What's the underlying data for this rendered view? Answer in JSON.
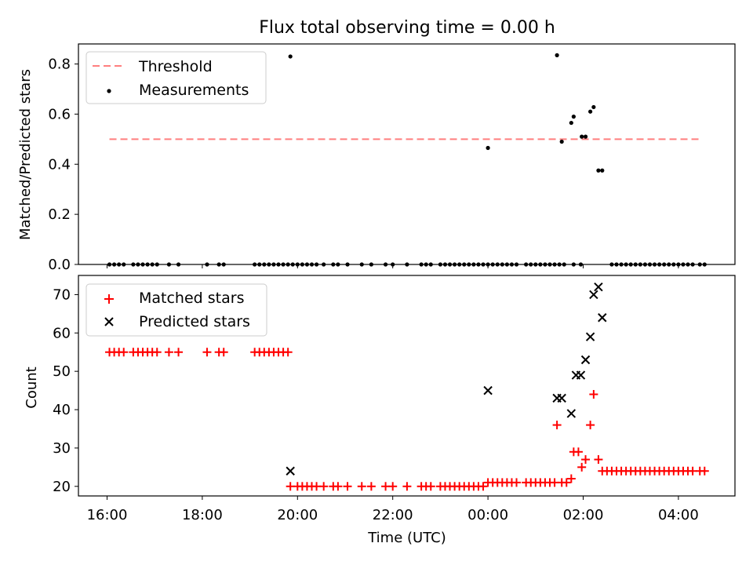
{
  "title": "Flux total observing time = 0.00 h",
  "xlabel": "Time (UTC)",
  "xticks": [
    {
      "h": 0,
      "label": "16:00"
    },
    {
      "h": 2,
      "label": "18:00"
    },
    {
      "h": 4,
      "label": "20:00"
    },
    {
      "h": 6,
      "label": "22:00"
    },
    {
      "h": 8,
      "label": "00:00"
    },
    {
      "h": 10,
      "label": "02:00"
    },
    {
      "h": 12,
      "label": "04:00"
    }
  ],
  "chart_data": [
    {
      "type": "scatter",
      "ylabel": "Matched/Predicted stars",
      "ylim": [
        0.0,
        0.88
      ],
      "yticks": [
        "0.0",
        "0.2",
        "0.4",
        "0.6",
        "0.8"
      ],
      "legend_position": "top-left",
      "threshold": {
        "name": "Threshold",
        "value": 0.5,
        "x_range": [
          0.05,
          12.5
        ],
        "color": "#ff7f7f"
      },
      "series": [
        {
          "name": "Measurements",
          "color": "#000000",
          "points": [
            [
              0.05,
              0
            ],
            [
              0.15,
              0
            ],
            [
              0.25,
              0
            ],
            [
              0.35,
              0
            ],
            [
              0.55,
              0
            ],
            [
              0.65,
              0
            ],
            [
              0.75,
              0
            ],
            [
              0.85,
              0
            ],
            [
              0.95,
              0
            ],
            [
              1.05,
              0
            ],
            [
              1.3,
              0
            ],
            [
              1.5,
              0
            ],
            [
              2.1,
              0
            ],
            [
              2.35,
              0
            ],
            [
              2.45,
              0
            ],
            [
              3.1,
              0
            ],
            [
              3.2,
              0
            ],
            [
              3.3,
              0
            ],
            [
              3.4,
              0
            ],
            [
              3.5,
              0
            ],
            [
              3.6,
              0
            ],
            [
              3.7,
              0
            ],
            [
              3.8,
              0
            ],
            [
              3.9,
              0
            ],
            [
              3.85,
              0.83
            ],
            [
              4.0,
              0
            ],
            [
              4.1,
              0
            ],
            [
              4.2,
              0
            ],
            [
              4.3,
              0
            ],
            [
              4.4,
              0
            ],
            [
              4.55,
              0
            ],
            [
              4.75,
              0
            ],
            [
              4.85,
              0
            ],
            [
              5.05,
              0
            ],
            [
              5.35,
              0
            ],
            [
              5.55,
              0
            ],
            [
              5.85,
              0
            ],
            [
              6.0,
              0
            ],
            [
              6.3,
              0
            ],
            [
              6.6,
              0
            ],
            [
              6.7,
              0
            ],
            [
              6.8,
              0
            ],
            [
              7.0,
              0
            ],
            [
              7.1,
              0
            ],
            [
              7.2,
              0
            ],
            [
              7.3,
              0
            ],
            [
              7.4,
              0
            ],
            [
              7.5,
              0
            ],
            [
              7.6,
              0
            ],
            [
              7.7,
              0
            ],
            [
              7.8,
              0
            ],
            [
              7.9,
              0
            ],
            [
              8.0,
              0
            ],
            [
              8.0,
              0.465
            ],
            [
              8.1,
              0
            ],
            [
              8.2,
              0
            ],
            [
              8.3,
              0
            ],
            [
              8.4,
              0
            ],
            [
              8.5,
              0
            ],
            [
              8.6,
              0
            ],
            [
              8.8,
              0
            ],
            [
              8.9,
              0
            ],
            [
              9.0,
              0
            ],
            [
              9.1,
              0
            ],
            [
              9.2,
              0
            ],
            [
              9.3,
              0
            ],
            [
              9.4,
              0
            ],
            [
              9.45,
              0.835
            ],
            [
              9.55,
              0.49
            ],
            [
              9.5,
              0
            ],
            [
              9.6,
              0
            ],
            [
              9.75,
              0.565
            ],
            [
              9.8,
              0
            ],
            [
              9.8,
              0.59
            ],
            [
              9.95,
              0
            ],
            [
              9.97,
              0.51
            ],
            [
              10.05,
              0.51
            ],
            [
              10.15,
              0.61
            ],
            [
              10.22,
              0.628
            ],
            [
              10.32,
              0.375
            ],
            [
              10.4,
              0.375
            ],
            [
              10.6,
              0
            ],
            [
              10.7,
              0
            ],
            [
              10.8,
              0
            ],
            [
              10.9,
              0
            ],
            [
              11.0,
              0
            ],
            [
              11.1,
              0
            ],
            [
              11.2,
              0
            ],
            [
              11.3,
              0
            ],
            [
              11.4,
              0
            ],
            [
              11.5,
              0
            ],
            [
              11.6,
              0
            ],
            [
              11.7,
              0
            ],
            [
              11.8,
              0
            ],
            [
              11.9,
              0
            ],
            [
              12.0,
              0
            ],
            [
              12.1,
              0
            ],
            [
              12.2,
              0
            ],
            [
              12.3,
              0
            ],
            [
              12.45,
              0
            ],
            [
              12.55,
              0
            ]
          ]
        }
      ]
    },
    {
      "type": "scatter",
      "ylabel": "Count",
      "ylim": [
        17.5,
        75
      ],
      "yticks": [
        20,
        30,
        40,
        50,
        60,
        70
      ],
      "legend_position": "top-left",
      "series": [
        {
          "name": "Matched stars",
          "marker": "plus",
          "color": "#ff0000",
          "points": [
            [
              0.05,
              55
            ],
            [
              0.15,
              55
            ],
            [
              0.25,
              55
            ],
            [
              0.35,
              55
            ],
            [
              0.55,
              55
            ],
            [
              0.65,
              55
            ],
            [
              0.75,
              55
            ],
            [
              0.85,
              55
            ],
            [
              0.95,
              55
            ],
            [
              1.05,
              55
            ],
            [
              1.3,
              55
            ],
            [
              1.5,
              55
            ],
            [
              2.1,
              55
            ],
            [
              2.35,
              55
            ],
            [
              2.45,
              55
            ],
            [
              3.1,
              55
            ],
            [
              3.2,
              55
            ],
            [
              3.3,
              55
            ],
            [
              3.4,
              55
            ],
            [
              3.5,
              55
            ],
            [
              3.6,
              55
            ],
            [
              3.7,
              55
            ],
            [
              3.8,
              55
            ],
            [
              3.85,
              20
            ],
            [
              4.0,
              20
            ],
            [
              4.1,
              20
            ],
            [
              4.2,
              20
            ],
            [
              4.3,
              20
            ],
            [
              4.4,
              20
            ],
            [
              4.55,
              20
            ],
            [
              4.75,
              20
            ],
            [
              4.85,
              20
            ],
            [
              5.05,
              20
            ],
            [
              5.35,
              20
            ],
            [
              5.55,
              20
            ],
            [
              5.85,
              20
            ],
            [
              6.0,
              20
            ],
            [
              6.3,
              20
            ],
            [
              6.6,
              20
            ],
            [
              6.7,
              20
            ],
            [
              6.8,
              20
            ],
            [
              7.0,
              20
            ],
            [
              7.1,
              20
            ],
            [
              7.2,
              20
            ],
            [
              7.3,
              20
            ],
            [
              7.4,
              20
            ],
            [
              7.5,
              20
            ],
            [
              7.6,
              20
            ],
            [
              7.7,
              20
            ],
            [
              7.8,
              20
            ],
            [
              7.9,
              20
            ],
            [
              8.0,
              21
            ],
            [
              8.1,
              21
            ],
            [
              8.2,
              21
            ],
            [
              8.3,
              21
            ],
            [
              8.4,
              21
            ],
            [
              8.5,
              21
            ],
            [
              8.6,
              21
            ],
            [
              8.8,
              21
            ],
            [
              8.9,
              21
            ],
            [
              9.0,
              21
            ],
            [
              9.1,
              21
            ],
            [
              9.2,
              21
            ],
            [
              9.3,
              21
            ],
            [
              9.4,
              21
            ],
            [
              9.45,
              36
            ],
            [
              9.55,
              21
            ],
            [
              9.65,
              21
            ],
            [
              9.75,
              22
            ],
            [
              9.8,
              29
            ],
            [
              9.9,
              29
            ],
            [
              9.97,
              25
            ],
            [
              10.05,
              27
            ],
            [
              10.15,
              36
            ],
            [
              10.22,
              44
            ],
            [
              10.32,
              27
            ],
            [
              10.4,
              24
            ],
            [
              10.5,
              24
            ],
            [
              10.6,
              24
            ],
            [
              10.7,
              24
            ],
            [
              10.8,
              24
            ],
            [
              10.9,
              24
            ],
            [
              11.0,
              24
            ],
            [
              11.1,
              24
            ],
            [
              11.2,
              24
            ],
            [
              11.3,
              24
            ],
            [
              11.4,
              24
            ],
            [
              11.5,
              24
            ],
            [
              11.6,
              24
            ],
            [
              11.7,
              24
            ],
            [
              11.8,
              24
            ],
            [
              11.9,
              24
            ],
            [
              12.0,
              24
            ],
            [
              12.1,
              24
            ],
            [
              12.2,
              24
            ],
            [
              12.3,
              24
            ],
            [
              12.45,
              24
            ],
            [
              12.55,
              24
            ]
          ]
        },
        {
          "name": "Predicted stars",
          "marker": "x",
          "color": "#000000",
          "points": [
            [
              3.85,
              24
            ],
            [
              8.0,
              45
            ],
            [
              9.45,
              43
            ],
            [
              9.55,
              43
            ],
            [
              9.75,
              39
            ],
            [
              9.85,
              49
            ],
            [
              9.95,
              49
            ],
            [
              10.05,
              53
            ],
            [
              10.15,
              59
            ],
            [
              10.22,
              70
            ],
            [
              10.32,
              72
            ],
            [
              10.4,
              64
            ]
          ]
        }
      ]
    }
  ]
}
